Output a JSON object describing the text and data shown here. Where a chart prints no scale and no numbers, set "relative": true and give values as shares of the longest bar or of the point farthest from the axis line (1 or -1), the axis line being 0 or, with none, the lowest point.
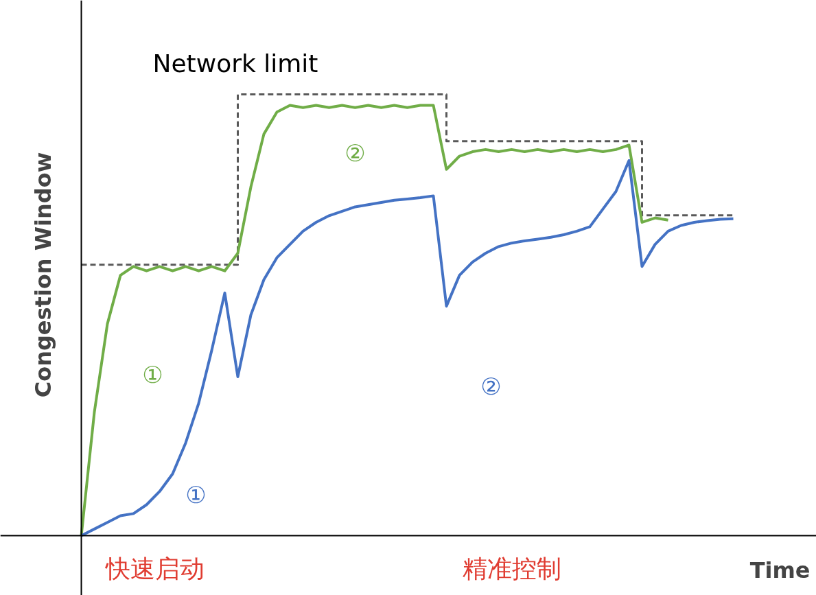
{
  "chart_data": {
    "type": "line",
    "relative": true,
    "xlabel": "Time",
    "ylabel": "Congestion Window",
    "tick_labels": false,
    "grid": false,
    "legend": false,
    "marker": "none",
    "categories": [
      null,
      null,
      null,
      null,
      null,
      null,
      null,
      null,
      null,
      null,
      null,
      null,
      null,
      null,
      null,
      null,
      null,
      null,
      null,
      null,
      null,
      null,
      null,
      null,
      null,
      null,
      null,
      null,
      null,
      null,
      null,
      null,
      null,
      null,
      null,
      null,
      null,
      null,
      null,
      null,
      null,
      null,
      null,
      null,
      null,
      null,
      null,
      null,
      null,
      null,
      null
    ],
    "series": [
      {
        "type": "step",
        "line_style": "dashed",
        "color": "#595959",
        "values": [
          0.614,
          0.614,
          0.614,
          0.614,
          0.614,
          0.614,
          0.614,
          0.614,
          0.614,
          0.614,
          0.614,
          0.614,
          1.0,
          1.0,
          1.0,
          1.0,
          1.0,
          1.0,
          1.0,
          1.0,
          1.0,
          1.0,
          1.0,
          1.0,
          1.0,
          1.0,
          1.0,
          1.0,
          0.894,
          0.894,
          0.894,
          0.894,
          0.894,
          0.894,
          0.894,
          0.894,
          0.894,
          0.894,
          0.894,
          0.894,
          0.894,
          0.894,
          0.894,
          0.726,
          0.726,
          0.726,
          0.726,
          0.726,
          0.726,
          0.726,
          0.726
        ]
      },
      {
        "line_style": "solid",
        "color": "#70ad47",
        "values": [
          0,
          0.28,
          0.48,
          0.59,
          0.61,
          0.6,
          0.61,
          0.6,
          0.61,
          0.6,
          0.61,
          0.6,
          0.64,
          0.79,
          0.91,
          0.96,
          0.975,
          0.97,
          0.975,
          0.97,
          0.975,
          0.97,
          0.975,
          0.97,
          0.975,
          0.97,
          0.975,
          0.975,
          0.83,
          0.86,
          0.87,
          0.875,
          0.87,
          0.875,
          0.87,
          0.875,
          0.87,
          0.875,
          0.87,
          0.875,
          0.87,
          0.875,
          0.885,
          0.71,
          0.72,
          0.715,
          null,
          null,
          null,
          null,
          null
        ]
      },
      {
        "line_style": "solid",
        "color": "#4472c4",
        "values": [
          0,
          0.015,
          0.03,
          0.045,
          0.05,
          0.07,
          0.1,
          0.14,
          0.21,
          0.3,
          0.42,
          0.55,
          0.36,
          0.5,
          0.58,
          0.63,
          0.66,
          0.69,
          0.71,
          0.725,
          0.735,
          0.745,
          0.75,
          0.755,
          0.76,
          0.763,
          0.766,
          0.77,
          0.52,
          0.59,
          0.62,
          0.64,
          0.655,
          0.663,
          0.668,
          0.672,
          0.676,
          0.682,
          0.69,
          0.7,
          0.74,
          0.78,
          0.85,
          0.61,
          0.66,
          0.69,
          0.703,
          0.71,
          0.714,
          0.717,
          0.718
        ]
      }
    ],
    "annotations": [
      "Network limit",
      "①",
      "①",
      "②",
      "②",
      "快速启动",
      "精准控制"
    ]
  }
}
